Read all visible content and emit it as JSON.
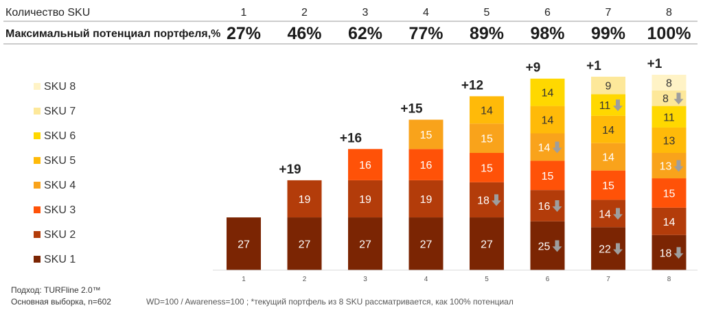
{
  "header": {
    "sku_count_label": "Количество SKU",
    "potential_label": "Максимальный потенциал портфеля,%",
    "sku_counts": [
      "1",
      "2",
      "3",
      "4",
      "5",
      "6",
      "7",
      "8"
    ],
    "potentials": [
      "27%",
      "46%",
      "62%",
      "77%",
      "89%",
      "98%",
      "99%",
      "100%"
    ]
  },
  "footer": {
    "approach": "Подход: TURFline 2.0™",
    "sample": "Основная выборка, n=602",
    "note": "WD=100  /  Awareness=100 ;  *текущий портфель из 8 SKU рассматривается, как 100% потенциал"
  },
  "chart_data": {
    "type": "stacked-bar",
    "categories": [
      "1",
      "2",
      "3",
      "4",
      "5",
      "6",
      "7",
      "8"
    ],
    "series": [
      {
        "name": "SKU 1",
        "color": "#7b2503",
        "text_color": "#ffffff",
        "values": [
          27,
          27,
          27,
          27,
          27,
          25,
          22,
          18
        ]
      },
      {
        "name": "SKU 2",
        "color": "#b33c0a",
        "text_color": "#ffffff",
        "values": [
          null,
          19,
          19,
          19,
          18,
          16,
          14,
          14
        ]
      },
      {
        "name": "SKU 3",
        "color": "#ff5208",
        "text_color": "#ffffff",
        "values": [
          null,
          null,
          16,
          16,
          15,
          15,
          15,
          15
        ]
      },
      {
        "name": "SKU 4",
        "color": "#f9a31b",
        "text_color": "#ffffff",
        "values": [
          null,
          null,
          null,
          15,
          15,
          14,
          14,
          13
        ]
      },
      {
        "name": "SKU 5",
        "color": "#ffba09",
        "text_color": "#333333",
        "values": [
          null,
          null,
          null,
          null,
          14,
          14,
          14,
          13
        ]
      },
      {
        "name": "SKU 6",
        "color": "#ffd800",
        "text_color": "#333333",
        "values": [
          null,
          null,
          null,
          null,
          null,
          14,
          11,
          11
        ]
      },
      {
        "name": "SKU 7",
        "color": "#fde89a",
        "text_color": "#333333",
        "values": [
          null,
          null,
          null,
          null,
          null,
          null,
          9,
          8
        ]
      },
      {
        "name": "SKU 8",
        "color": "#fff3c6",
        "text_color": "#333333",
        "values": [
          null,
          null,
          null,
          null,
          null,
          null,
          null,
          8
        ]
      }
    ],
    "increments": [
      "+19",
      "+16",
      "+15",
      "+12",
      "+9",
      "+1",
      "+1"
    ],
    "increment_start_index": 1,
    "decline_arrows": [
      {
        "bar": 4,
        "series": 1
      },
      {
        "bar": 5,
        "series": 0
      },
      {
        "bar": 5,
        "series": 1
      },
      {
        "bar": 5,
        "series": 3
      },
      {
        "bar": 6,
        "series": 0
      },
      {
        "bar": 6,
        "series": 1
      },
      {
        "bar": 6,
        "series": 5
      },
      {
        "bar": 7,
        "series": 0
      },
      {
        "bar": 7,
        "series": 3
      },
      {
        "bar": 7,
        "series": 6
      }
    ],
    "legend_position": "left",
    "grid": false
  }
}
